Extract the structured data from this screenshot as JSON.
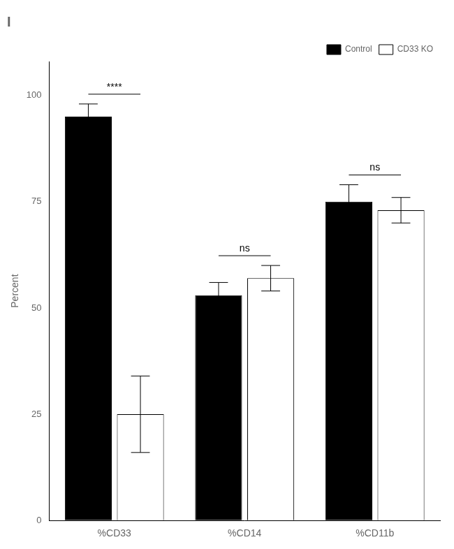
{
  "chart_data": {
    "type": "bar",
    "title": "I",
    "categories": [
      "%CD33",
      "%CD14",
      "%CD11b"
    ],
    "series": [
      {
        "name": "Control",
        "color": "#000000",
        "values": [
          95,
          53,
          75
        ],
        "errors": [
          3,
          3,
          4
        ]
      },
      {
        "name": "CD33 KO",
        "color": "#ffffff",
        "values": [
          25,
          57,
          73
        ],
        "errors": [
          9,
          3,
          3
        ]
      }
    ],
    "ylabel": "Percent",
    "ylim": [
      0,
      108
    ],
    "yticks": [
      0,
      25,
      50,
      75,
      100
    ],
    "annotations": [
      {
        "category": "%CD33",
        "text": "****"
      },
      {
        "category": "%CD14",
        "text": "ns"
      },
      {
        "category": "%CD11b",
        "text": "ns"
      }
    ],
    "grid": false,
    "legend": "upper right"
  }
}
